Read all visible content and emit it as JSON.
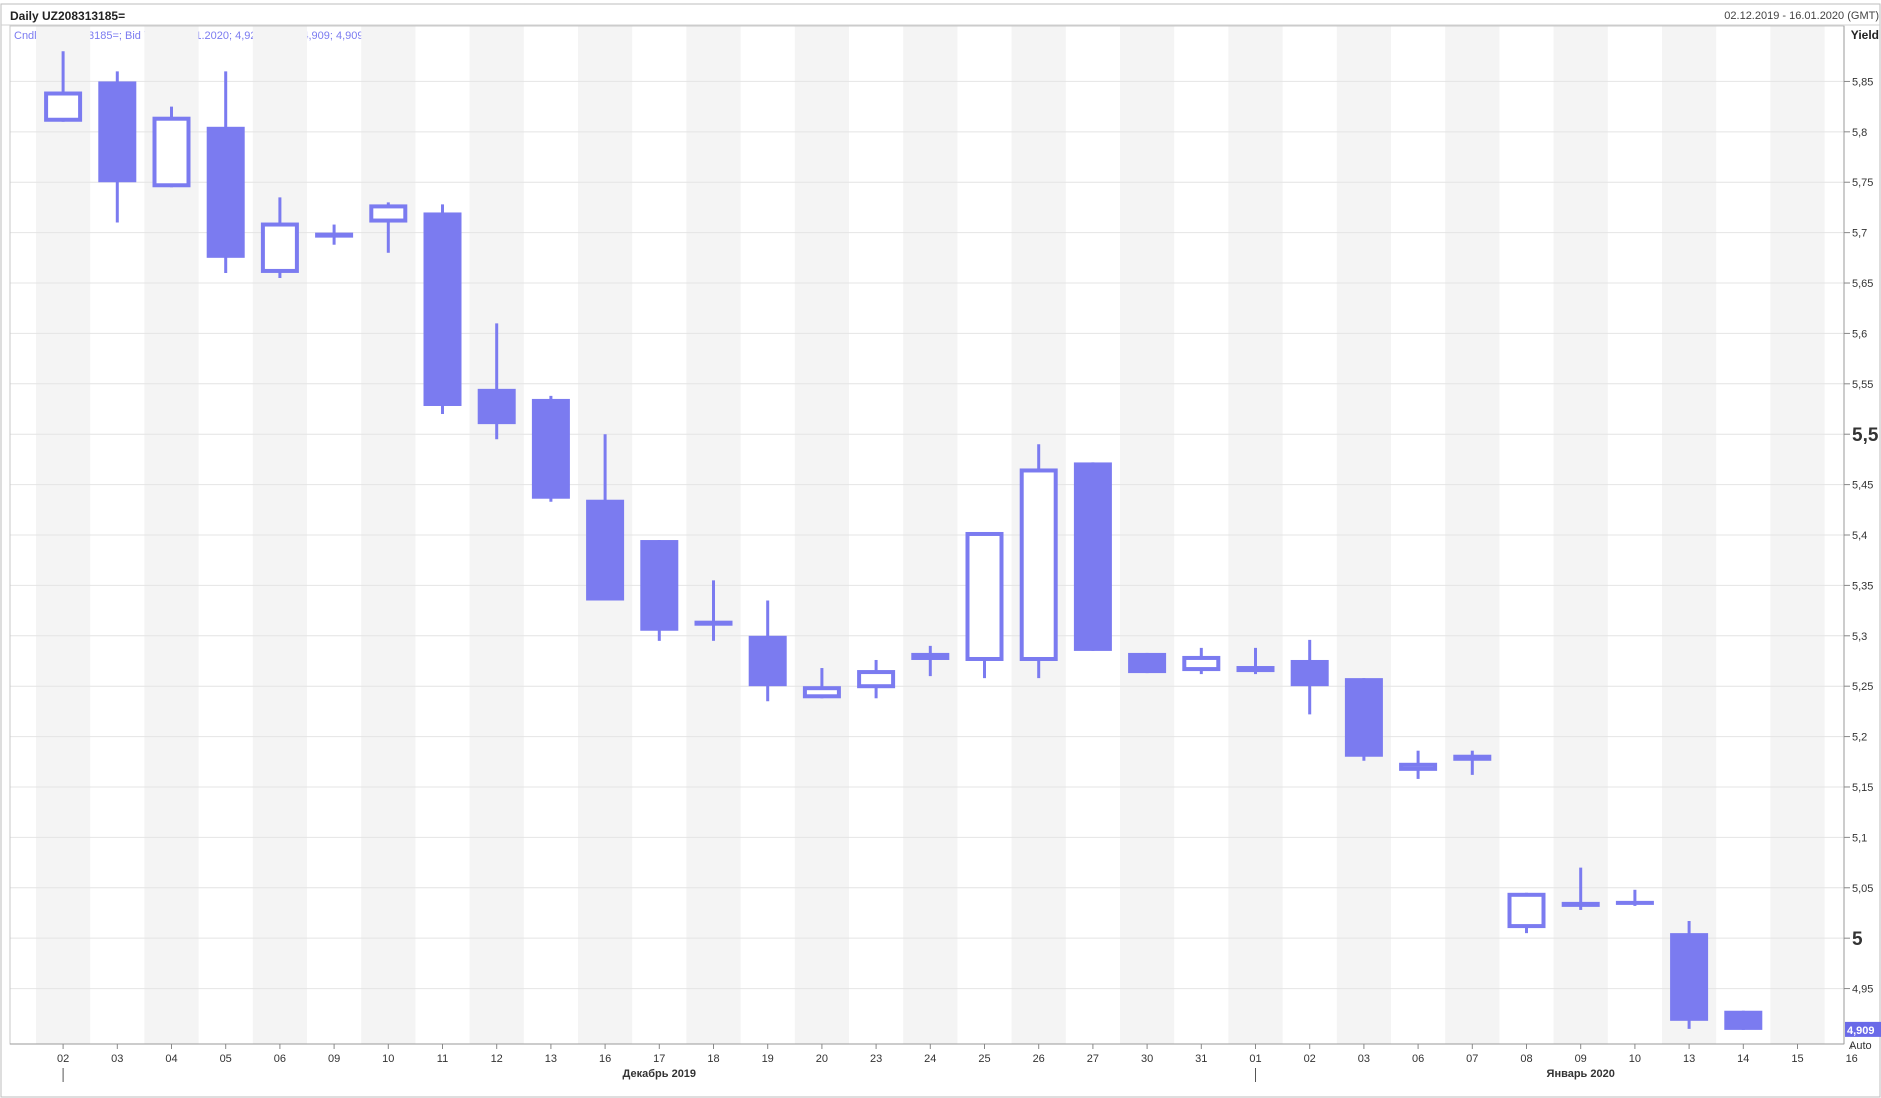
{
  "header": {
    "title": "Daily UZ208313185=",
    "date_range": "02.12.2019 - 16.01.2020 (GMT)",
    "legend": "Cndl; UZ208313185=; Bid Yield; 14.01.2020; 4,928; 4,928; 4,909; 4,909",
    "axis_title": "Yield",
    "last_value": "4,909",
    "auto_label": "Auto"
  },
  "colors": {
    "candle": "#7b7bf0",
    "band": "#f4f4f4",
    "grid": "#e4e4e4",
    "last_badge": "#6a6ae8"
  },
  "chart_data": {
    "type": "candlestick",
    "ylabel": "Yield",
    "ylim": [
      4.895,
      5.905
    ],
    "y_ticks": [
      "5,85",
      "5,8",
      "5,75",
      "5,7",
      "5,65",
      "5,6",
      "5,55",
      "5,5",
      "5,45",
      "5,4",
      "5,35",
      "5,3",
      "5,25",
      "5,2",
      "5,15",
      "5,1",
      "5,05",
      "5",
      "4,95"
    ],
    "y_tick_values": [
      5.85,
      5.8,
      5.75,
      5.7,
      5.65,
      5.6,
      5.55,
      5.5,
      5.45,
      5.4,
      5.35,
      5.3,
      5.25,
      5.2,
      5.15,
      5.1,
      5.05,
      5.0,
      4.95
    ],
    "y_major": [
      "5,5",
      "5"
    ],
    "x_labels": [
      "02",
      "03",
      "04",
      "05",
      "06",
      "09",
      "10",
      "11",
      "12",
      "13",
      "16",
      "17",
      "18",
      "19",
      "20",
      "23",
      "24",
      "25",
      "26",
      "27",
      "30",
      "31",
      "01",
      "02",
      "03",
      "06",
      "07",
      "08",
      "09",
      "10",
      "13",
      "14",
      "15",
      "16"
    ],
    "month_labels": [
      {
        "label": "Декабрь 2019",
        "at_index": 11
      },
      {
        "label": "Январь 2020",
        "at_index": 28
      }
    ],
    "month_ticks": [
      0,
      22
    ],
    "candles": [
      {
        "o": 5.81,
        "h": 5.88,
        "l": 5.81,
        "c": 5.84
      },
      {
        "o": 5.85,
        "h": 5.86,
        "l": 5.71,
        "c": 5.75
      },
      {
        "o": 5.745,
        "h": 5.825,
        "l": 5.745,
        "c": 5.815
      },
      {
        "o": 5.805,
        "h": 5.86,
        "l": 5.66,
        "c": 5.675
      },
      {
        "o": 5.66,
        "h": 5.735,
        "l": 5.655,
        "c": 5.71
      },
      {
        "o": 5.7,
        "h": 5.708,
        "l": 5.688,
        "c": 5.7
      },
      {
        "o": 5.71,
        "h": 5.73,
        "l": 5.68,
        "c": 5.728
      },
      {
        "o": 5.72,
        "h": 5.728,
        "l": 5.52,
        "c": 5.528
      },
      {
        "o": 5.545,
        "h": 5.61,
        "l": 5.495,
        "c": 5.51
      },
      {
        "o": 5.535,
        "h": 5.538,
        "l": 5.433,
        "c": 5.436
      },
      {
        "o": 5.435,
        "h": 5.5,
        "l": 5.335,
        "c": 5.335
      },
      {
        "o": 5.395,
        "h": 5.395,
        "l": 5.295,
        "c": 5.305
      },
      {
        "o": 5.31,
        "h": 5.355,
        "l": 5.295,
        "c": 5.315
      },
      {
        "o": 5.3,
        "h": 5.335,
        "l": 5.235,
        "c": 5.25
      },
      {
        "o": 5.238,
        "h": 5.268,
        "l": 5.238,
        "c": 5.25
      },
      {
        "o": 5.248,
        "h": 5.276,
        "l": 5.238,
        "c": 5.266
      },
      {
        "o": 5.276,
        "h": 5.29,
        "l": 5.26,
        "c": 5.283
      },
      {
        "o": 5.275,
        "h": 5.403,
        "l": 5.258,
        "c": 5.403
      },
      {
        "o": 5.275,
        "h": 5.49,
        "l": 5.258,
        "c": 5.466
      },
      {
        "o": 5.472,
        "h": 5.472,
        "l": 5.285,
        "c": 5.285
      },
      {
        "o": 5.283,
        "h": 5.283,
        "l": 5.263,
        "c": 5.263
      },
      {
        "o": 5.265,
        "h": 5.288,
        "l": 5.262,
        "c": 5.28
      },
      {
        "o": 5.27,
        "h": 5.288,
        "l": 5.262,
        "c": 5.264
      },
      {
        "o": 5.276,
        "h": 5.296,
        "l": 5.222,
        "c": 5.25
      },
      {
        "o": 5.258,
        "h": 5.258,
        "l": 5.176,
        "c": 5.18
      },
      {
        "o": 5.166,
        "h": 5.186,
        "l": 5.158,
        "c": 5.174
      },
      {
        "o": 5.182,
        "h": 5.186,
        "l": 5.162,
        "c": 5.176
      },
      {
        "o": 5.01,
        "h": 5.045,
        "l": 5.005,
        "c": 5.045
      },
      {
        "o": 5.034,
        "h": 5.07,
        "l": 5.028,
        "c": 5.036
      },
      {
        "o": 5.037,
        "h": 5.048,
        "l": 5.032,
        "c": 5.033
      },
      {
        "o": 5.005,
        "h": 5.017,
        "l": 4.91,
        "c": 4.918
      },
      {
        "o": 4.928,
        "h": 4.928,
        "l": 4.909,
        "c": 4.909
      }
    ]
  }
}
